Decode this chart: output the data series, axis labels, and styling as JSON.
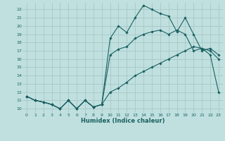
{
  "title": "",
  "xlabel": "Humidex (Indice chaleur)",
  "bg_color": "#c0e0e0",
  "grid_color": "#a8c8c8",
  "line_color": "#1a6060",
  "x_data": [
    0,
    1,
    2,
    3,
    4,
    5,
    6,
    7,
    8,
    9,
    10,
    11,
    12,
    13,
    14,
    15,
    16,
    17,
    18,
    19,
    20,
    21,
    22,
    23
  ],
  "y_line1": [
    11.5,
    11.0,
    10.8,
    10.5,
    10.0,
    11.0,
    10.0,
    11.0,
    10.2,
    10.5,
    18.5,
    20.0,
    19.2,
    21.0,
    22.5,
    22.0,
    21.5,
    21.2,
    19.3,
    21.0,
    19.0,
    17.0,
    17.3,
    16.5
  ],
  "y_line2": [
    11.5,
    11.0,
    10.8,
    10.5,
    10.0,
    11.0,
    10.0,
    11.0,
    10.2,
    10.5,
    16.5,
    17.2,
    17.5,
    18.5,
    19.0,
    19.3,
    19.5,
    19.0,
    19.5,
    19.0,
    17.0,
    17.3,
    16.5,
    12.0
  ],
  "y_line3": [
    11.5,
    11.0,
    10.8,
    10.5,
    10.0,
    11.0,
    10.0,
    11.0,
    10.2,
    10.5,
    12.0,
    12.5,
    13.2,
    14.0,
    14.5,
    15.0,
    15.5,
    16.0,
    16.5,
    17.0,
    17.5,
    17.3,
    17.0,
    16.0
  ],
  "xlim": [
    -0.5,
    23.5
  ],
  "ylim": [
    9.5,
    22.8
  ],
  "yticks": [
    10,
    11,
    12,
    13,
    14,
    15,
    16,
    17,
    18,
    19,
    20,
    21,
    22
  ],
  "xticks": [
    0,
    1,
    2,
    3,
    4,
    5,
    6,
    7,
    8,
    9,
    10,
    11,
    12,
    13,
    14,
    15,
    16,
    17,
    18,
    19,
    20,
    21,
    22,
    23
  ]
}
